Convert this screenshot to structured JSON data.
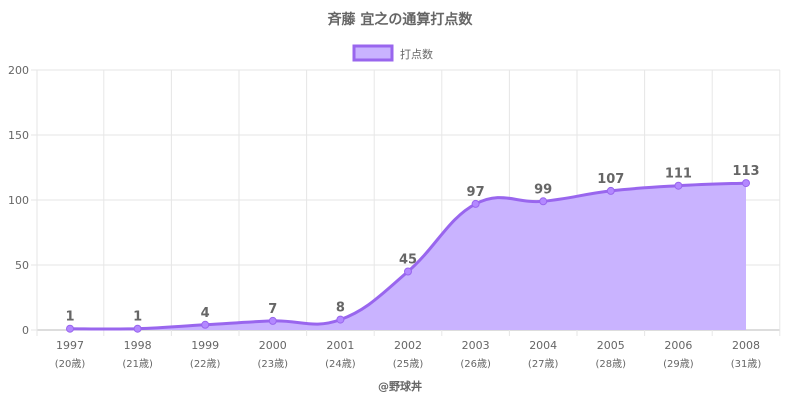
{
  "chart_data": {
    "type": "area",
    "title": "斉藤 宜之の通算打点数",
    "series": [
      {
        "name": "打点数",
        "values": [
          1,
          1,
          4,
          7,
          8,
          45,
          97,
          99,
          107,
          111,
          113
        ]
      }
    ],
    "categories": [
      "1997",
      "1998",
      "1999",
      "2000",
      "2001",
      "2002",
      "2003",
      "2004",
      "2005",
      "2006",
      "2008"
    ],
    "sublabels": [
      "(20歳)",
      "(21歳)",
      "(22歳)",
      "(23歳)",
      "(24歳)",
      "(25歳)",
      "(26歳)",
      "(27歳)",
      "(28歳)",
      "(29歳)",
      "(31歳)"
    ],
    "ylim": [
      0,
      200
    ],
    "yticks": [
      0,
      50,
      100,
      150,
      200
    ],
    "grid": true,
    "legend": "top-center",
    "colors": {
      "line": "#9966ee",
      "fill": "#c9b3ff",
      "point": "#b388ff"
    }
  },
  "footer": "@野球丼"
}
